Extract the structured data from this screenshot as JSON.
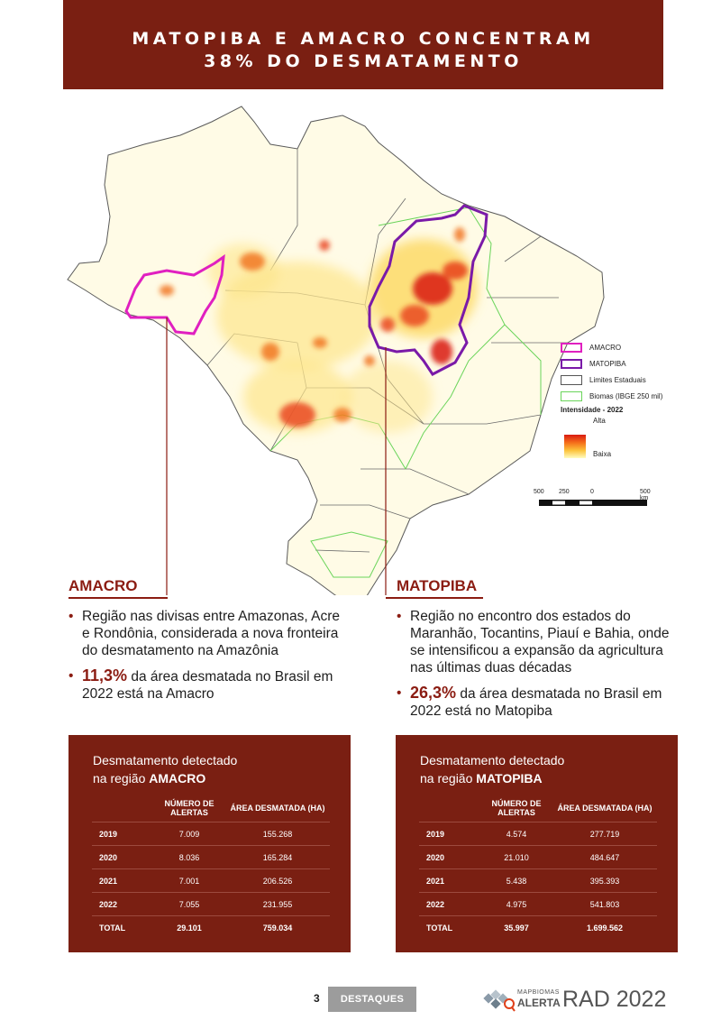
{
  "banner": {
    "line1": "MATOPIBA E AMACRO CONCENTRAM",
    "line2": "38% DO DESMATAMENTO"
  },
  "map": {
    "legend": {
      "items": [
        {
          "label": "AMACRO",
          "color": "#e020c0"
        },
        {
          "label": "MATOPIBA",
          "color": "#7a1aa8"
        },
        {
          "label": "Limites Estaduais",
          "color": "#555555"
        },
        {
          "label": "Biomas (IBGE 250 mil)",
          "color": "#6ad45a"
        }
      ],
      "intensity_title": "Intensidade - 2022",
      "high": "Alta",
      "low": "Baixa"
    },
    "scale": {
      "t0": "500",
      "t1": "250",
      "t2": "0",
      "t3": "500 km"
    }
  },
  "amacro": {
    "heading": "AMACRO",
    "b1": "Região nas divisas entre Amazonas, Acre e Rondônia, considerada a nova fronteira do desmatamento na Amazônia",
    "pct": "11,3%",
    "b2_rest": " da área desmatada no Brasil em 2022 está na Amacro"
  },
  "matopiba": {
    "heading": "MATOPIBA",
    "b1": "Região no encontro dos estados do Maranhão, Tocantins, Piauí e Bahia, onde se intensificou a expansão da agricultura nas últimas duas décadas",
    "pct": "26,3%",
    "b2_rest": " da área desmatada no Brasil em 2022 está no Matopiba"
  },
  "table_amacro": {
    "title1": "Desmatamento detectado",
    "title2": "na região ",
    "title2_bold": "AMACRO",
    "col1": "NÚMERO DE ALERTAS",
    "col2": "ÁREA DESMATADA (HA)",
    "rows": [
      {
        "year": "2019",
        "alerts": "7.009",
        "area": "155.268"
      },
      {
        "year": "2020",
        "alerts": "8.036",
        "area": "165.284"
      },
      {
        "year": "2021",
        "alerts": "7.001",
        "area": "206.526"
      },
      {
        "year": "2022",
        "alerts": "7.055",
        "area": "231.955"
      }
    ],
    "total": {
      "label": "TOTAL",
      "alerts": "29.101",
      "area": "759.034"
    }
  },
  "table_matopiba": {
    "title1": "Desmatamento detectado",
    "title2": "na região ",
    "title2_bold": "MATOPIBA",
    "col1": "NÚMERO DE ALERTAS",
    "col2": "ÁREA DESMATADA (HA)",
    "rows": [
      {
        "year": "2019",
        "alerts": "4.574",
        "area": "277.719"
      },
      {
        "year": "2020",
        "alerts": "21.010",
        "area": "484.647"
      },
      {
        "year": "2021",
        "alerts": "5.438",
        "area": "395.393"
      },
      {
        "year": "2022",
        "alerts": "4.975",
        "area": "541.803"
      }
    ],
    "total": {
      "label": "TOTAL",
      "alerts": "35.997",
      "area": "1.699.562"
    }
  },
  "footer": {
    "page": "3",
    "section": "DESTAQUES",
    "logo_top": "MAPBIOMAS",
    "logo_bottom": "ALERTA",
    "report": "RAD 2022"
  }
}
